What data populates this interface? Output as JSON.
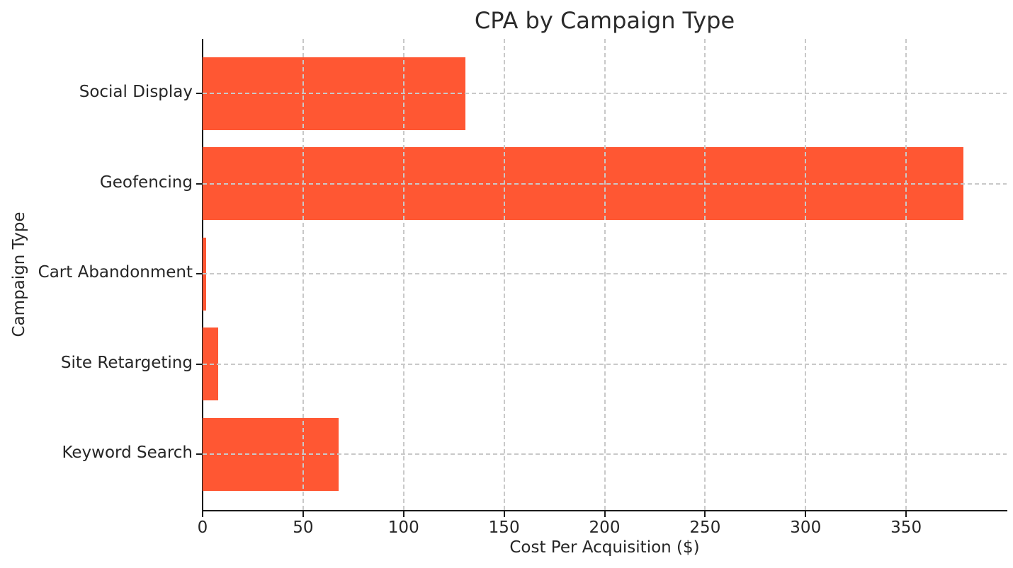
{
  "chart_data": {
    "type": "bar",
    "orientation": "horizontal",
    "title": "CPA by Campaign Type",
    "xlabel": "Cost Per Acquisition ($)",
    "ylabel": "Campaign Type",
    "categories": [
      "Social Display",
      "Geofencing",
      "Cart Abandonment",
      "Site Retargeting",
      "Keyword Search"
    ],
    "values": [
      130.7,
      378.5,
      1.7,
      7.6,
      67.5
    ],
    "xlim": [
      0,
      400
    ],
    "xticks": [
      0,
      50,
      100,
      150,
      200,
      250,
      300,
      350
    ],
    "bar_color": "#FF5733",
    "grid": "dashed",
    "gridline_color": "#c9c9c9",
    "legend": "none"
  }
}
